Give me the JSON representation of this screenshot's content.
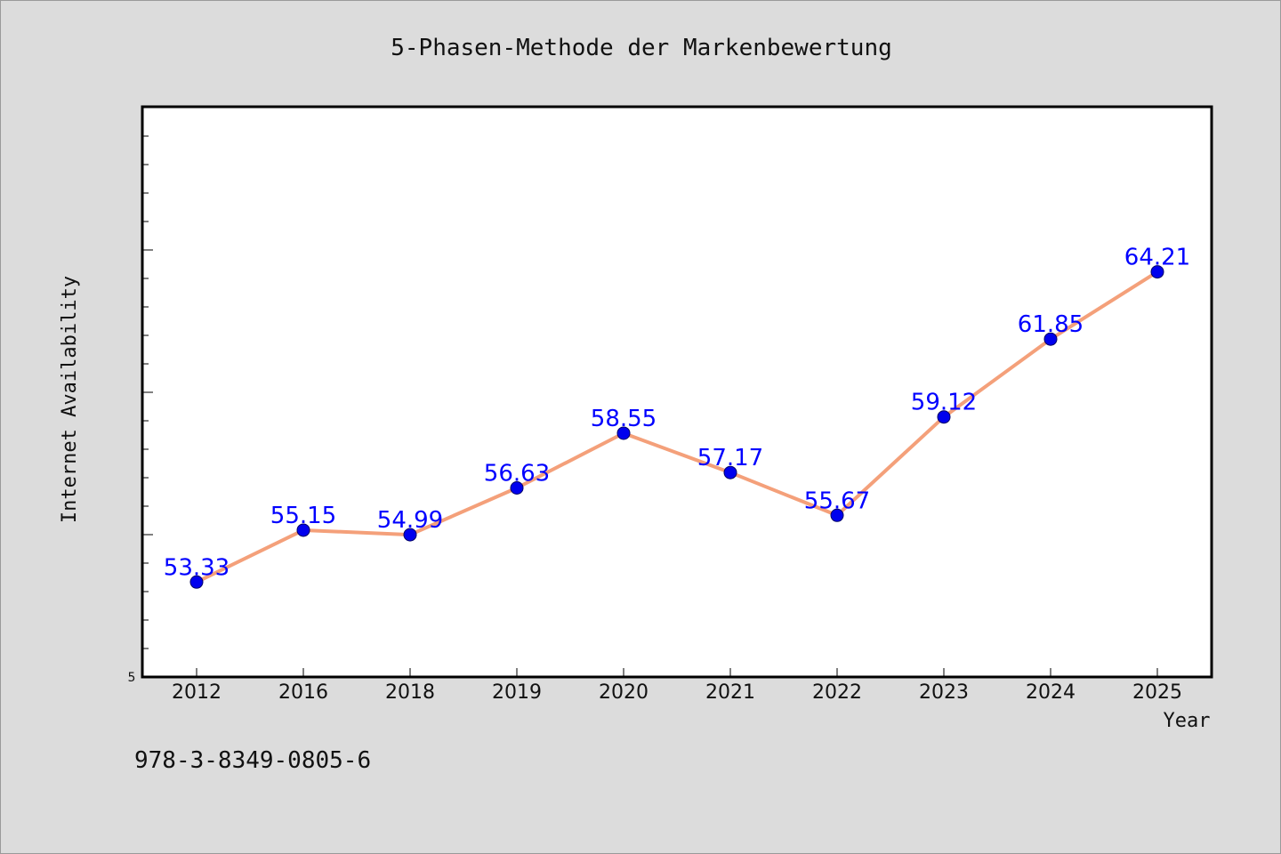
{
  "chart_data": {
    "type": "line",
    "title": "5-Phasen-Methode der Markenbewertung",
    "xlabel": "Year",
    "ylabel": "Internet Availability",
    "categories": [
      "2012",
      "2016",
      "2018",
      "2019",
      "2020",
      "2021",
      "2022",
      "2023",
      "2024",
      "2025"
    ],
    "series": [
      {
        "values": [
          53.33,
          55.15,
          54.99,
          56.63,
          58.55,
          57.17,
          55.67,
          59.12,
          61.85,
          64.21
        ],
        "labels": [
          "53.33",
          "55.15",
          "54.99",
          "56.63",
          "58.55",
          "57.17",
          "55.67",
          "59.12",
          "61.85",
          "64.21"
        ],
        "line_color": "#f4a07a",
        "marker_color": "#0000ee",
        "label_color": "#0000ff"
      }
    ],
    "y_tick_labels": [
      "5"
    ],
    "ylim": [
      50,
      70
    ],
    "grid": false,
    "legend": "none",
    "colors": {
      "background": "#dcdcdc",
      "plot_background": "#ffffff",
      "line": "#f4a07a",
      "marker": "#0000ee",
      "data_label": "#0000ff"
    }
  },
  "footer": {
    "text": "978-3-8349-0805-6"
  }
}
